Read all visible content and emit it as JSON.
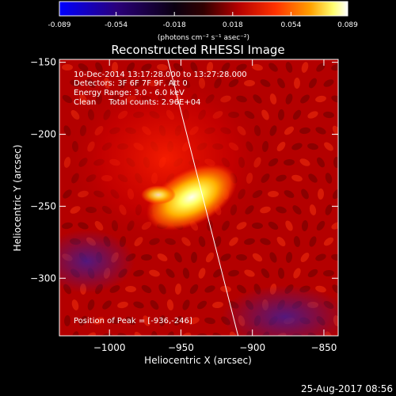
{
  "colorbar": {
    "tick_labels": [
      "-0.089",
      "-0.054",
      "-0.018",
      "0.018",
      "0.054",
      "0.089"
    ],
    "tick_values": [
      -0.089,
      -0.054,
      -0.018,
      0.018,
      0.054,
      0.089
    ],
    "unit_label": "(photons cm⁻² s⁻¹ asec⁻²)",
    "colormap": [
      "#0000ff",
      "#1a0050",
      "#000000",
      "#5a0000",
      "#c80000",
      "#ff5000",
      "#ffa000",
      "#ffff80",
      "#ffffff"
    ]
  },
  "annotations": {
    "time_range": "10-Dec-2014 13:17:28.000 to 13:27:28.000",
    "detectors": "Detectors: 3F 6F 7F 9F, Att 0",
    "energy": "Energy Range: 3.0 - 6.0 keV",
    "clean": "Clean     Total counts: 2.96E+04",
    "peak": "Position of Peak = [-936,-246]",
    "footer_date": "25-Aug-2017 08:56"
  },
  "chart_data": {
    "type": "heatmap",
    "title": "Reconstructed RHESSI Image",
    "xlabel": "Heliocentric X (arcsec)",
    "ylabel": "Heliocentric Y (arcsec)",
    "xlim": [
      -1035,
      -840
    ],
    "ylim": [
      -340,
      -148
    ],
    "x_ticks": [
      -1000,
      -950,
      -900,
      -850
    ],
    "x_tick_labels": [
      "−1000",
      "−950",
      "−900",
      "−850"
    ],
    "y_ticks": [
      -150,
      -200,
      -250,
      -300
    ],
    "y_tick_labels": [
      "−150",
      "−200",
      "−250",
      "−300"
    ],
    "value_range": [
      -0.089,
      0.089
    ],
    "peak_position": [
      -936,
      -246
    ],
    "limb_line": [
      [
        -960,
        -145
      ],
      [
        -910,
        -340
      ]
    ],
    "grid": false,
    "image_color": "#b40000"
  }
}
